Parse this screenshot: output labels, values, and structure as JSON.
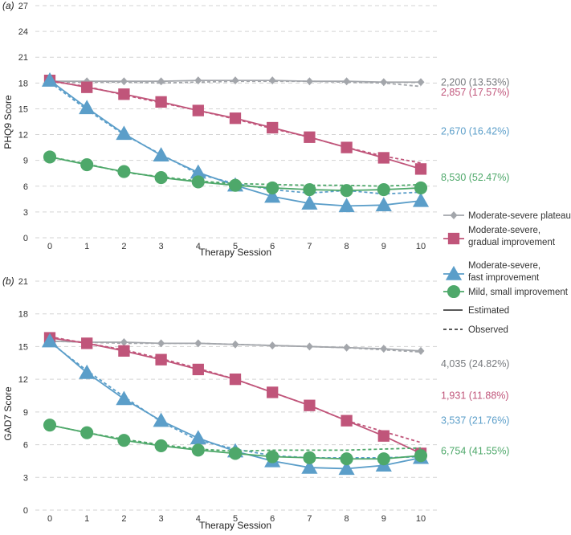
{
  "chart_data": [
    {
      "panel_label": "(a)",
      "type": "line",
      "xlabel": "Therapy Session",
      "ylabel": "PHQ9 Score",
      "x": [
        0,
        1,
        2,
        3,
        4,
        5,
        6,
        7,
        8,
        9,
        10
      ],
      "xlim": [
        0,
        10
      ],
      "ylim": [
        0,
        27
      ],
      "yticks": [
        0,
        3,
        6,
        9,
        12,
        15,
        18,
        21,
        24,
        27
      ],
      "grid": "horizontal dashed",
      "series": [
        {
          "key": "plateau",
          "estimated": [
            18.2,
            18.2,
            18.2,
            18.2,
            18.3,
            18.3,
            18.3,
            18.2,
            18.2,
            18.1,
            18.1
          ],
          "observed": [
            18.1,
            18.1,
            18.1,
            18.0,
            18.1,
            18.2,
            18.2,
            18.2,
            18.1,
            18.0,
            17.6
          ],
          "label": "2,200 (13.53%)",
          "label_value": 18.1
        },
        {
          "key": "gradual",
          "estimated": [
            18.3,
            17.5,
            16.7,
            15.8,
            14.8,
            13.9,
            12.8,
            11.7,
            10.5,
            9.3,
            8.0
          ],
          "observed": [
            18.2,
            17.6,
            16.6,
            15.7,
            14.8,
            13.8,
            12.7,
            11.7,
            10.5,
            9.5,
            8.7
          ],
          "label": "2,857 (17.57%)",
          "label_value": 16.9
        },
        {
          "key": "fast",
          "estimated": [
            18.3,
            15.1,
            12.1,
            9.6,
            7.6,
            6.1,
            4.8,
            4.0,
            3.7,
            3.8,
            4.3
          ],
          "observed": [
            18.1,
            14.9,
            12.0,
            9.7,
            7.4,
            6.3,
            5.6,
            5.2,
            5.5,
            5.1,
            5.3
          ],
          "label": "2,670 (16.42%)",
          "label_value": 12.4
        },
        {
          "key": "mild",
          "estimated": [
            9.4,
            8.5,
            7.7,
            7.0,
            6.5,
            6.1,
            5.8,
            5.6,
            5.5,
            5.6,
            5.8
          ],
          "observed": [
            9.4,
            8.6,
            7.6,
            7.1,
            6.6,
            6.3,
            6.2,
            6.1,
            6.1,
            6.0,
            6.2
          ],
          "label": "8,530 (52.47%)",
          "label_value": 7.0
        }
      ]
    },
    {
      "panel_label": "(b)",
      "type": "line",
      "xlabel": "Therapy Session",
      "ylabel": "GAD7 Score",
      "x": [
        0,
        1,
        2,
        3,
        4,
        5,
        6,
        7,
        8,
        9,
        10
      ],
      "xlim": [
        0,
        10
      ],
      "ylim": [
        0,
        21
      ],
      "yticks": [
        0,
        3,
        6,
        9,
        12,
        15,
        18,
        21
      ],
      "grid": "horizontal dashed",
      "series": [
        {
          "key": "plateau",
          "estimated": [
            15.5,
            15.4,
            15.4,
            15.3,
            15.3,
            15.2,
            15.1,
            15.0,
            14.9,
            14.8,
            14.6
          ],
          "observed": [
            15.5,
            15.4,
            15.3,
            15.3,
            15.3,
            15.2,
            15.1,
            15.0,
            14.9,
            14.7,
            14.5
          ],
          "label": "4,035 (24.82%)",
          "label_value": 13.4
        },
        {
          "key": "gradual",
          "estimated": [
            15.8,
            15.3,
            14.6,
            13.8,
            12.9,
            12.0,
            10.8,
            9.6,
            8.2,
            6.8,
            5.2
          ],
          "observed": [
            15.9,
            15.3,
            14.7,
            13.9,
            13.0,
            12.0,
            10.8,
            9.6,
            8.2,
            7.2,
            6.2
          ],
          "label": "1,931 (11.88%)",
          "label_value": 10.5
        },
        {
          "key": "fast",
          "estimated": [
            15.5,
            12.6,
            10.2,
            8.2,
            6.6,
            5.4,
            4.5,
            3.9,
            3.8,
            4.1,
            4.8
          ],
          "observed": [
            15.4,
            12.8,
            10.4,
            8.1,
            6.4,
            5.6,
            5.0,
            4.8,
            4.8,
            4.8,
            4.9
          ],
          "label": "3,537 (21.76%)",
          "label_value": 8.2
        },
        {
          "key": "mild",
          "estimated": [
            7.8,
            7.1,
            6.4,
            5.9,
            5.5,
            5.2,
            4.9,
            4.8,
            4.7,
            4.7,
            5.0
          ],
          "observed": [
            7.8,
            7.1,
            6.5,
            6.0,
            5.6,
            5.4,
            5.5,
            5.5,
            5.5,
            5.6,
            5.7
          ],
          "label": "6,754 (41.55%)",
          "label_value": 5.4
        }
      ]
    }
  ],
  "groups": {
    "plateau": {
      "color": "#a3a6ab",
      "label_color": "#777a7e",
      "marker": "diamond",
      "legend_lines": [
        "Moderate-severe plateau"
      ]
    },
    "gradual": {
      "color": "#c0557a",
      "label_color": "#c0557a",
      "marker": "square",
      "legend_lines": [
        "Moderate-severe,",
        "gradual improvement"
      ]
    },
    "fast": {
      "color": "#5b9ec9",
      "label_color": "#5b9ec9",
      "marker": "triangle",
      "legend_lines": [
        "Moderate-severe,",
        "fast improvement"
      ]
    },
    "mild": {
      "color": "#4ea86a",
      "label_color": "#4ea86a",
      "marker": "circle",
      "legend_lines": [
        "Mild, small improvement"
      ]
    }
  },
  "legend": {
    "position": "right",
    "order": [
      "plateau",
      "gradual",
      "fast",
      "mild"
    ],
    "line_types": [
      {
        "style": "solid",
        "label": "Estimated"
      },
      {
        "style": "dashed",
        "label": "Observed"
      }
    ]
  }
}
